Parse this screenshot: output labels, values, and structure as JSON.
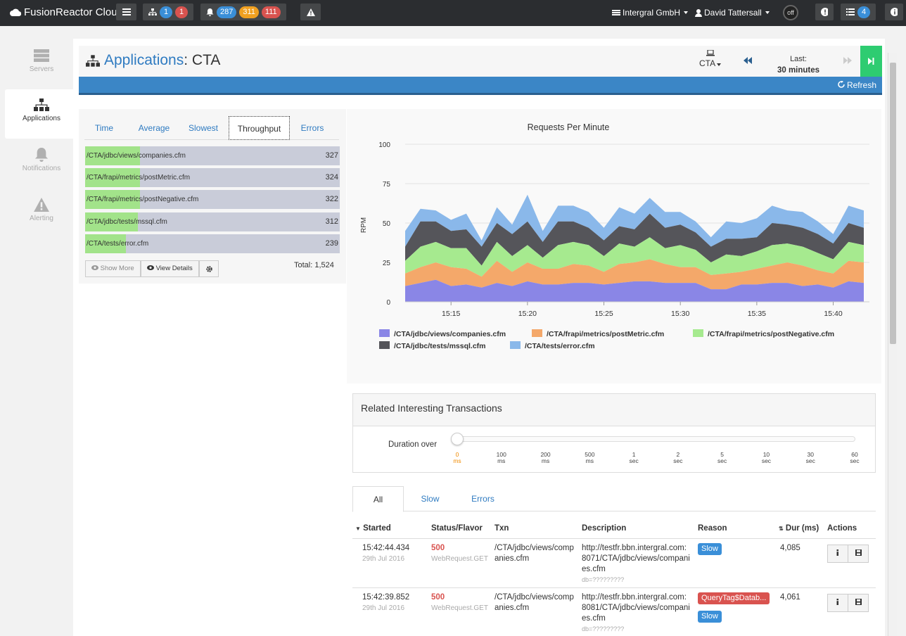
{
  "topbar": {
    "brand": "FusionReactor Cloud",
    "apps_counts": [
      "1",
      "1"
    ],
    "notif_counts": [
      "287",
      "311",
      "111"
    ],
    "org": "Intergral GmbH",
    "user": "David Tattersall",
    "toggle": "off",
    "list_count": "4"
  },
  "sidenav": [
    {
      "label": "Servers",
      "icon": "servers-icon"
    },
    {
      "label": "Applications",
      "icon": "sitemap-icon"
    },
    {
      "label": "Notifications",
      "icon": "bell-icon"
    },
    {
      "label": "Alerting",
      "icon": "warning-icon"
    }
  ],
  "header": {
    "title": "Applications",
    "subtitle": ": CTA",
    "app_select": "CTA",
    "last_label": "Last:",
    "last_value": "30 minutes",
    "refresh": "Refresh"
  },
  "left": {
    "tabs": [
      "Time",
      "Average",
      "Slowest",
      "Throughput",
      "Errors"
    ],
    "active_tab": "Throughput",
    "bars": [
      {
        "label": "/CTA/jdbc/views/companies.cfm",
        "value": "327"
      },
      {
        "label": "/CTA/frapi/metrics/postMetric.cfm",
        "value": "324"
      },
      {
        "label": "/CTA/frapi/metrics/postNegative.cfm",
        "value": "322"
      },
      {
        "label": "/CTA/jdbc/tests/mssql.cfm",
        "value": "312"
      },
      {
        "label": "/CTA/tests/error.cfm",
        "value": "239"
      }
    ],
    "show_more": "Show More",
    "view_details": "View Details",
    "total": "Total: 1,524"
  },
  "chart_data": {
    "type": "area",
    "title": "Requests Per Minute",
    "ylabel": "RPM",
    "xlabel": "",
    "ylim": [
      0,
      100
    ],
    "yticks": [
      "0",
      "25",
      "50",
      "75",
      "100"
    ],
    "x_tick_labels": [
      "15:15",
      "15:20",
      "15:25",
      "15:30",
      "15:35",
      "15:40"
    ],
    "x": [
      "15:12",
      "15:13",
      "15:14",
      "15:15",
      "15:16",
      "15:17",
      "15:18",
      "15:19",
      "15:20",
      "15:21",
      "15:22",
      "15:23",
      "15:24",
      "15:25",
      "15:26",
      "15:27",
      "15:28",
      "15:29",
      "15:30",
      "15:31",
      "15:32",
      "15:33",
      "15:34",
      "15:35",
      "15:36",
      "15:37",
      "15:38",
      "15:39",
      "15:40",
      "15:41",
      "15:42"
    ],
    "stacked": true,
    "colors": [
      "#8a86e6",
      "#f4a86a",
      "#a6ea8f",
      "#55555a",
      "#8ab8ea"
    ],
    "series": [
      {
        "name": "/CTA/jdbc/views/companies.cfm",
        "values": [
          10,
          12,
          14,
          10,
          11,
          9,
          12,
          10,
          13,
          11,
          11,
          12,
          12,
          11,
          12,
          13,
          13,
          12,
          12,
          12,
          8,
          8,
          11,
          11,
          12,
          12,
          10,
          11,
          9,
          13,
          12
        ]
      },
      {
        "name": "/CTA/frapi/metrics/postMetric.cfm",
        "values": [
          8,
          10,
          11,
          12,
          10,
          7,
          14,
          9,
          12,
          10,
          10,
          12,
          11,
          8,
          12,
          12,
          14,
          12,
          10,
          10,
          9,
          10,
          8,
          10,
          11,
          13,
          13,
          9,
          9,
          13,
          13
        ]
      },
      {
        "name": "/CTA/frapi/metrics/postNegative.cfm",
        "values": [
          8,
          13,
          13,
          12,
          13,
          7,
          12,
          10,
          11,
          7,
          15,
          14,
          13,
          10,
          13,
          10,
          14,
          10,
          14,
          11,
          8,
          12,
          10,
          11,
          13,
          12,
          12,
          11,
          9,
          12,
          11
        ]
      },
      {
        "name": "/CTA/jdbc/tests/mssql.cfm",
        "values": [
          9,
          16,
          13,
          11,
          12,
          12,
          12,
          14,
          15,
          10,
          15,
          13,
          11,
          10,
          11,
          11,
          15,
          13,
          13,
          11,
          10,
          10,
          11,
          9,
          14,
          12,
          12,
          12,
          10,
          12,
          11
        ]
      },
      {
        "name": "/CTA/tests/error.cfm",
        "values": [
          10,
          8,
          7,
          7,
          10,
          4,
          10,
          6,
          17,
          7,
          10,
          10,
          10,
          8,
          12,
          10,
          10,
          10,
          8,
          7,
          6,
          11,
          10,
          12,
          11,
          9,
          10,
          8,
          6,
          11,
          11
        ]
      }
    ]
  },
  "transactions": {
    "title": "Related Interesting Transactions",
    "duration_label": "Duration over",
    "ticks": [
      [
        "0",
        "ms"
      ],
      [
        "100",
        "ms"
      ],
      [
        "200",
        "ms"
      ],
      [
        "500",
        "ms"
      ],
      [
        "1",
        "sec"
      ],
      [
        "2",
        "sec"
      ],
      [
        "5",
        "sec"
      ],
      [
        "10",
        "sec"
      ],
      [
        "30",
        "sec"
      ],
      [
        "60",
        "sec"
      ]
    ],
    "tabs": [
      "All",
      "Slow",
      "Errors"
    ],
    "columns": [
      "Started",
      "Status/Flavor",
      "Txn",
      "Description",
      "Reason",
      "Dur (ms)",
      "Actions"
    ],
    "rows": [
      {
        "time": "15:42:44.434",
        "date": "29th Jul 2016",
        "status": "500",
        "flavor": "WebRequest.GET",
        "txn1": "/CTA/jdbc/views/comp",
        "txn2": "anies.cfm",
        "desc1": "http://testfr.bbn.intergral.com:",
        "desc2": "8071/CTA/jdbc/views/compani",
        "desc3": "es.cfm",
        "desc4": "db=?????????",
        "reason_tag": "",
        "reason": "Slow",
        "dur": "4,085"
      },
      {
        "time": "15:42:39.852",
        "date": "29th Jul 2016",
        "status": "500",
        "flavor": "WebRequest.GET",
        "txn1": "/CTA/jdbc/views/comp",
        "txn2": "anies.cfm",
        "desc1": "http://testfr.bbn.intergral.com:",
        "desc2": "8081/CTA/jdbc/views/compani",
        "desc3": "es.cfm",
        "desc4": "db=?????????",
        "reason_tag": "QueryTag$Datab...",
        "reason": "Slow",
        "dur": "4,061"
      }
    ]
  }
}
